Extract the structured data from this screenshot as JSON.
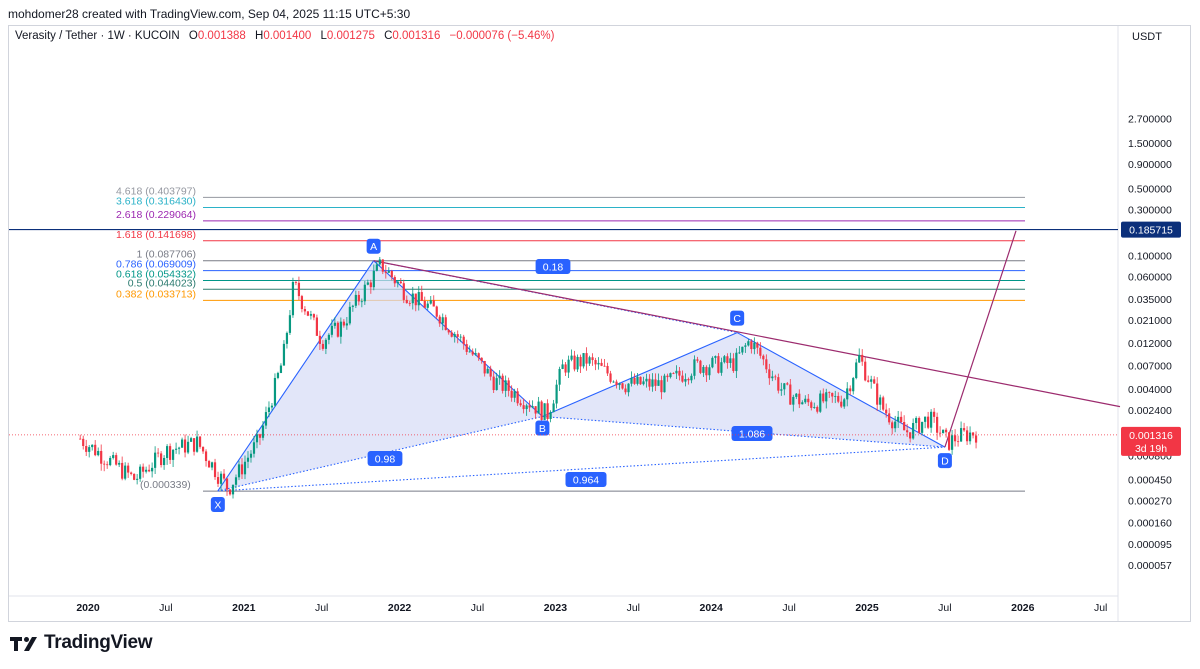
{
  "header": {
    "attribution": "mohdomer28 created with TradingView.com, Sep 04, 2025 11:15 UTC+5:30"
  },
  "legend": {
    "symbol": "Verasity / Tether · 1W · KUCOIN",
    "open_label": "O",
    "open": "0.001388",
    "high_label": "H",
    "high": "0.001400",
    "low_label": "L",
    "low": "0.001275",
    "close_label": "C",
    "close": "0.001316",
    "change": "−0.000076 (−5.46%)"
  },
  "currency": "USDT",
  "footer": {
    "brand": "TradingView"
  },
  "colors": {
    "up": "#089981",
    "down": "#f23645",
    "pattern_fill": "#d6dcf6",
    "pattern_line": "#2962ff",
    "projection": "#9c2b6e",
    "price_line": "#0b2f7a"
  },
  "chart_data": {
    "type": "candlestick",
    "scale": "log",
    "price_axis_labels": [
      "2.700000",
      "1.500000",
      "0.900000",
      "0.500000",
      "0.300000",
      "0.100000",
      "0.060000",
      "0.035000",
      "0.021000",
      "0.012000",
      "0.007000",
      "0.004000",
      "0.002400",
      "0.000800",
      "0.000450",
      "0.000270",
      "0.000160",
      "0.000095",
      "0.000057"
    ],
    "time_axis_labels": [
      "2020",
      "Jul",
      "2021",
      "Jul",
      "2022",
      "Jul",
      "2023",
      "Jul",
      "2024",
      "Jul",
      "2025",
      "Jul",
      "2026",
      "Jul"
    ],
    "price_tag": {
      "value": "0.185715"
    },
    "last_price_tag": {
      "value": "0.001316",
      "countdown": "3d 19h"
    },
    "fib_levels": [
      {
        "label": "4.618 (0.403797)",
        "color": "#9598a1"
      },
      {
        "label": "3.618 (0.316430)",
        "color": "#2bb2c8"
      },
      {
        "label": "2.618 (0.229064)",
        "color": "#9c27b0"
      },
      {
        "label": "1.618 (0.141698)",
        "color": "#f23645"
      },
      {
        "label": "1 (0.087706)",
        "color": "#787b86"
      },
      {
        "label": "0.786 (0.069009)",
        "color": "#2962ff"
      },
      {
        "label": "0.618 (0.054332)",
        "color": "#009688"
      },
      {
        "label": "0.5 (0.044023)",
        "color": "#2b7a6f"
      },
      {
        "label": "0.382 (0.033713)",
        "color": "#ff9800"
      },
      {
        "label": "(0.000339)",
        "color": "#787b86"
      }
    ],
    "pattern_points": [
      {
        "label": "X",
        "date": "2020-11",
        "price": 0.00034
      },
      {
        "label": "A",
        "date": "2021-11",
        "price": 0.0877
      },
      {
        "label": "B",
        "date": "2022-12",
        "price": 0.00205
      },
      {
        "label": "C",
        "date": "2024-03",
        "price": 0.0155
      },
      {
        "label": "D",
        "date": "2025-07",
        "price": 0.00098
      }
    ],
    "ratios": [
      "0.18",
      "0.98",
      "1.086",
      "0.964"
    ]
  }
}
